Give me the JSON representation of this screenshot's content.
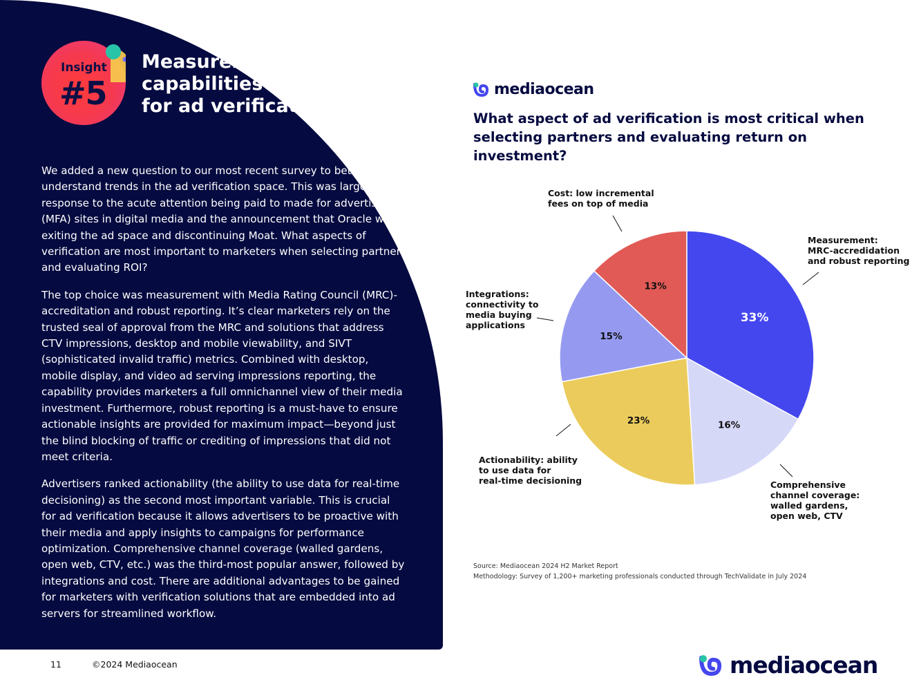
{
  "badge": {
    "word": "Insight",
    "number": "#5"
  },
  "headline": "Measurement capabilities critical for ad verification",
  "body": {
    "paragraphs": [
      "We added a new question to our most recent survey to better understand trends in the ad verification space. This was largely a response to the acute attention being paid to made for advertising (MFA) sites in digital media and the announcement that Oracle was exiting the ad space and discontinuing Moat. What aspects of verification are most important to marketers when selecting partners and evaluating ROI?",
      "The top choice was measurement with Media Rating Council (MRC)-accreditation and robust reporting. It’s clear marketers rely on the trusted seal of approval from the MRC and solutions that address CTV impressions, desktop and mobile viewability, and SIVT (sophisticated invalid traffic) metrics. Combined with desktop, mobile display, and video ad serving impressions reporting, the capability provides marketers a full omnichannel view of their media investment. Furthermore, robust reporting is a must-have to ensure actionable insights are provided for maximum impact—beyond just the blind blocking of traffic or crediting of impressions that did not meet criteria.",
      "Advertisers ranked actionability (the ability to use data for real-time decisioning) as the second most important variable. This is crucial for ad verification because it allows advertisers to be proactive with their media and apply insights to campaigns for performance optimization. Comprehensive channel coverage (walled gardens, open web, CTV, etc.) was the third-most popular answer, followed by integrations and cost. There are additional advantages to be gained for marketers with verification solutions that are embedded into ad servers for streamlined workflow."
    ]
  },
  "brand": {
    "name": "mediaocean",
    "logo_icon": "mediaocean-logo-icon"
  },
  "chart_data": {
    "type": "pie",
    "title": "What aspect of ad verification is most critical when selecting partners and evaluating return on investment?",
    "slices": [
      {
        "label": "Measurement: MRC-accredidation and robust reporting",
        "value": 33,
        "display": "33%",
        "color": "#4547ee",
        "label_color": "#ffffff"
      },
      {
        "label": "Comprehensive channel coverage: walled gardens, open web, CTV",
        "value": 16,
        "display": "16%",
        "color": "#d6d8f8",
        "label_color": "#111111"
      },
      {
        "label": "Actionability: ability to use data for real-time decisioning",
        "value": 23,
        "display": "23%",
        "color": "#ebcb5b",
        "label_color": "#111111"
      },
      {
        "label": "Integrations: connectivity to media buying applications",
        "value": 15,
        "display": "15%",
        "color": "#959af0",
        "label_color": "#111111"
      },
      {
        "label": "Cost: low incremental fees on top of media",
        "value": 13,
        "display": "13%",
        "color": "#e15a56",
        "label_color": "#111111"
      }
    ],
    "callouts": [
      [
        "Measurement:",
        "MRC-accredidation",
        "and robust reporting"
      ],
      [
        "Comprehensive",
        "channel coverage:",
        "walled gardens,",
        "open web, CTV"
      ],
      [
        "Actionability: ability",
        "to use data for",
        "real-time decisioning"
      ],
      [
        "Integrations:",
        "connectivity to",
        "media buying",
        "applications"
      ],
      [
        "Cost: low incremental",
        "fees on top of media"
      ]
    ]
  },
  "source": {
    "line1": "Source: Mediaocean 2024 H2 Market Report",
    "line2": "Methodology: Survey of 1,200+ marketing professionals conducted through TechValidate in July 2024"
  },
  "footer": {
    "page_number": "11",
    "copyright": "©2024 Mediaocean"
  },
  "colors": {
    "navy": "#050a40",
    "accent_blue": "#4547ee",
    "coral": "#e15a56",
    "yellow": "#ebcb5b"
  }
}
